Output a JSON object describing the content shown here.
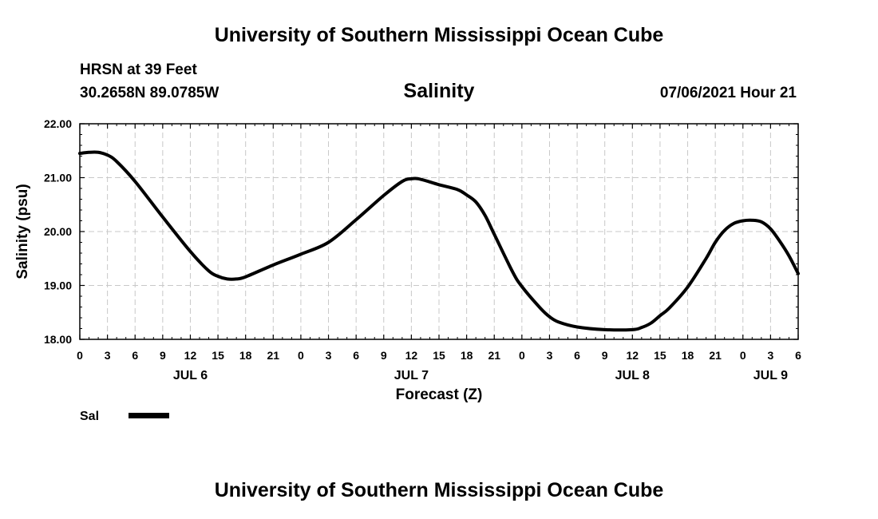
{
  "header": {
    "title": "University of Southern Mississippi Ocean Cube",
    "station": "HRSN at 39 Feet",
    "coordinates": "30.2658N  89.0785W",
    "parameter": "Salinity",
    "datetime": "07/06/2021 Hour 21"
  },
  "footer": {
    "title": "University of Southern Mississippi Ocean Cube"
  },
  "chart_data": {
    "type": "line",
    "title": "Salinity",
    "xlabel": "Forecast (Z)",
    "ylabel": "Salinity (psu)",
    "ylim": [
      18.0,
      22.0
    ],
    "xlim": [
      0,
      78
    ],
    "yticks": [
      "18.00",
      "19.00",
      "20.00",
      "21.00",
      "22.00"
    ],
    "yticks_values": [
      18,
      19,
      20,
      21,
      22
    ],
    "xticks": [
      {
        "h": 0,
        "label": "0"
      },
      {
        "h": 3,
        "label": "3"
      },
      {
        "h": 6,
        "label": "6"
      },
      {
        "h": 9,
        "label": "9"
      },
      {
        "h": 12,
        "label": "12"
      },
      {
        "h": 15,
        "label": "15"
      },
      {
        "h": 18,
        "label": "18"
      },
      {
        "h": 21,
        "label": "21"
      },
      {
        "h": 24,
        "label": "0"
      },
      {
        "h": 27,
        "label": "3"
      },
      {
        "h": 30,
        "label": "6"
      },
      {
        "h": 33,
        "label": "9"
      },
      {
        "h": 36,
        "label": "12"
      },
      {
        "h": 39,
        "label": "15"
      },
      {
        "h": 42,
        "label": "18"
      },
      {
        "h": 45,
        "label": "21"
      },
      {
        "h": 48,
        "label": "0"
      },
      {
        "h": 51,
        "label": "3"
      },
      {
        "h": 54,
        "label": "6"
      },
      {
        "h": 57,
        "label": "9"
      },
      {
        "h": 60,
        "label": "12"
      },
      {
        "h": 63,
        "label": "15"
      },
      {
        "h": 66,
        "label": "18"
      },
      {
        "h": 69,
        "label": "21"
      },
      {
        "h": 72,
        "label": "0"
      },
      {
        "h": 75,
        "label": "3"
      },
      {
        "h": 78,
        "label": "6"
      }
    ],
    "date_labels": [
      {
        "h": 12,
        "label": "JUL 6"
      },
      {
        "h": 36,
        "label": "JUL 7"
      },
      {
        "h": 60,
        "label": "JUL 8"
      },
      {
        "h": 75,
        "label": "JUL 9"
      }
    ],
    "grid": true,
    "legend": "bottom-left",
    "series": [
      {
        "name": "Sal",
        "color": "#000000",
        "x": [
          0,
          1,
          2,
          3,
          4,
          6,
          9,
          12,
          14,
          15,
          16,
          17,
          18,
          21,
          24,
          27,
          30,
          33,
          35,
          36,
          37,
          39,
          41,
          42,
          43,
          44,
          45,
          47,
          48,
          50,
          51,
          52,
          54,
          57,
          60,
          61,
          62,
          63,
          64,
          66,
          68,
          69,
          70,
          71,
          72,
          73,
          74,
          75,
          76,
          77,
          78
        ],
        "values": [
          21.45,
          21.47,
          21.47,
          21.42,
          21.3,
          20.93,
          20.27,
          19.63,
          19.27,
          19.17,
          19.12,
          19.12,
          19.16,
          19.38,
          19.58,
          19.8,
          20.22,
          20.67,
          20.93,
          20.98,
          20.97,
          20.87,
          20.78,
          20.68,
          20.55,
          20.3,
          19.95,
          19.25,
          18.98,
          18.58,
          18.42,
          18.32,
          18.23,
          18.18,
          18.18,
          18.22,
          18.3,
          18.44,
          18.58,
          18.97,
          19.5,
          19.8,
          20.02,
          20.15,
          20.2,
          20.21,
          20.18,
          20.05,
          19.82,
          19.55,
          19.22
        ]
      }
    ]
  }
}
